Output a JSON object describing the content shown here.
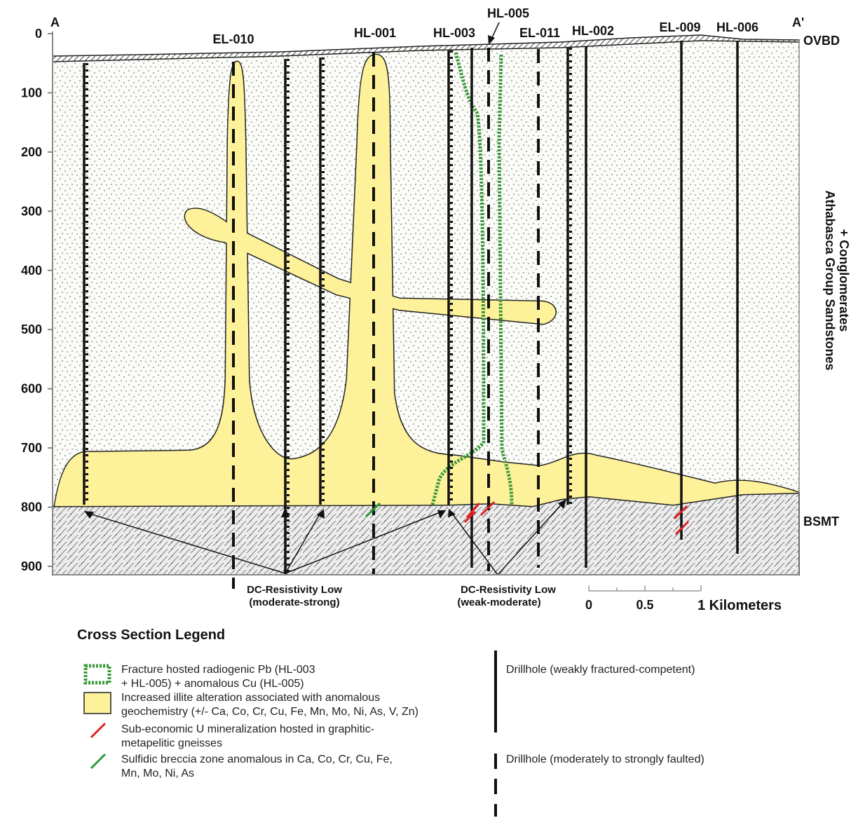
{
  "section": {
    "left_end": "A",
    "right_end": "A'",
    "top_unit": "OVBD",
    "main_unit_line1": "Athabasca Group Sandstones",
    "main_unit_line2": "+ Conglomerates",
    "bottom_unit": "BSMT",
    "depth_ticks": [
      0,
      100,
      200,
      300,
      400,
      500,
      600,
      700,
      800,
      900
    ],
    "drillholes": [
      "EL-010",
      "HL-001",
      "HL-003",
      "HL-005",
      "EL-011",
      "HL-002",
      "EL-009",
      "HL-006"
    ],
    "annotations": [
      {
        "line1": "DC-Resistivity Low",
        "line2": "(moderate-strong)"
      },
      {
        "line1": "DC-Resistivity Low",
        "line2": "(weak-moderate)"
      }
    ],
    "scale_bar": {
      "labels": [
        0,
        0.5
      ],
      "end_label": "1 Kilometers"
    }
  },
  "legend": {
    "title": "Cross Section Legend",
    "items": [
      [
        "Fracture hosted radiogenic Pb (HL-003",
        "+ HL-005) + anomalous Cu (HL-005)"
      ],
      [
        "Increased illite alteration associated with anomalous",
        "geochemistry (+/- Ca, Co, Cr, Cu, Fe, Mn, Mo, Ni, As, V, Zn)"
      ],
      [
        "Sub-economic U mineralization hosted in graphitic-",
        "metapelitic gneisses"
      ],
      [
        "Sulfidic breccia zone anomalous in Ca, Co, Cr, Cu, Fe,",
        "Mn, Mo, Ni, As"
      ],
      [
        "Drillhole (weakly fractured-competent)"
      ],
      [
        "Drillhole (moderately to strongly faulted)"
      ]
    ]
  }
}
